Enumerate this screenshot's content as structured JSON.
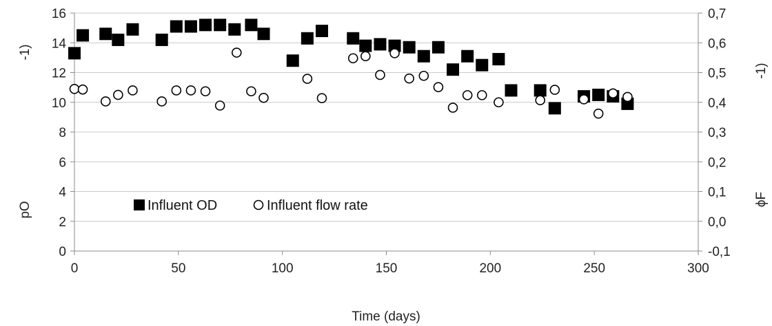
{
  "chart_data": {
    "type": "scatter",
    "title": "",
    "xlabel": "Time (days)",
    "ylabel_left_main": "pO",
    "ylabel_left_fragment": "-1)",
    "ylabel_right_main": "ϕF",
    "ylabel_right_fragment": "-1)",
    "xlim": [
      0,
      300
    ],
    "xticks": [
      "0",
      "50",
      "100",
      "150",
      "200",
      "250",
      "300"
    ],
    "ylim_left": [
      0,
      16
    ],
    "yticks_left": [
      "0",
      "2",
      "4",
      "6",
      "8",
      "10",
      "12",
      "14",
      "16"
    ],
    "ylim_right": [
      -0.1,
      0.7
    ],
    "yticks_right": [
      "-0,1",
      "0,0",
      "0,1",
      "0,2",
      "0,3",
      "0,4",
      "0,5",
      "0,6",
      "0,7"
    ],
    "grid": "horizontal",
    "legend_position": "bottom-left",
    "series": [
      {
        "name": "Influent OD",
        "axis": "left",
        "marker": "filled-square",
        "color": "#000000",
        "x": [
          0,
          4,
          15,
          21,
          28,
          42,
          49,
          56,
          63,
          70,
          77,
          85,
          91,
          105,
          112,
          119,
          134,
          140,
          147,
          154,
          161,
          168,
          175,
          182,
          189,
          196,
          204,
          210,
          224,
          231,
          245,
          252,
          259,
          266
        ],
        "y": [
          13.3,
          14.5,
          14.6,
          14.2,
          14.9,
          14.2,
          15.1,
          15.1,
          15.2,
          15.2,
          14.9,
          15.2,
          14.6,
          12.8,
          14.3,
          14.8,
          14.3,
          13.8,
          13.9,
          13.8,
          13.7,
          13.1,
          13.7,
          12.2,
          13.1,
          12.5,
          12.9,
          10.8,
          10.8,
          9.6,
          10.4,
          10.5,
          10.4,
          9.9
        ]
      },
      {
        "name": "Influent flow rate",
        "axis": "right",
        "marker": "open-circle",
        "color": "#000000",
        "x": [
          0,
          4,
          15,
          21,
          28,
          42,
          49,
          56,
          63,
          70,
          78,
          85,
          91,
          112,
          119,
          134,
          140,
          147,
          154,
          161,
          168,
          175,
          182,
          189,
          196,
          204,
          224,
          231,
          245,
          252,
          259,
          266
        ],
        "y": [
          0.445,
          0.443,
          0.403,
          0.425,
          0.44,
          0.403,
          0.44,
          0.44,
          0.437,
          0.389,
          0.567,
          0.437,
          0.415,
          0.479,
          0.414,
          0.548,
          0.555,
          0.492,
          0.565,
          0.48,
          0.489,
          0.451,
          0.382,
          0.424,
          0.424,
          0.4,
          0.407,
          0.442,
          0.41,
          0.362,
          0.43,
          0.418
        ]
      }
    ]
  }
}
